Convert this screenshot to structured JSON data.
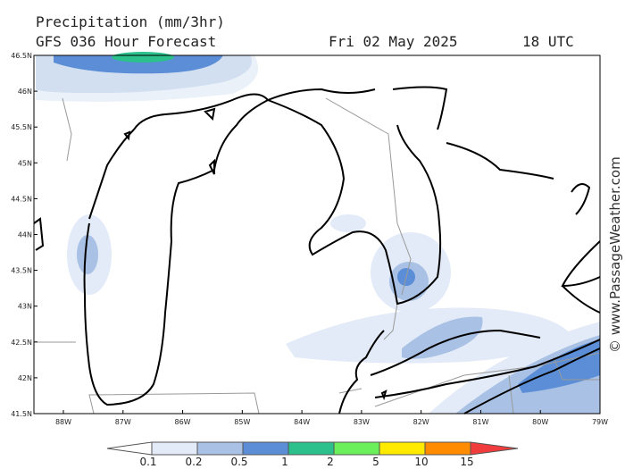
{
  "header": {
    "title": "Precipitation (mm/3hr)",
    "model": "GFS 036 Hour Forecast",
    "date": "Fri 02 May 2025",
    "time": "18 UTC"
  },
  "map": {
    "lat_labels": [
      "46.5N",
      "46N",
      "45.5N",
      "45N",
      "44.5N",
      "44N",
      "43.5N",
      "43N",
      "42.5N",
      "42N",
      "41.5N"
    ],
    "lon_labels": [
      "88W",
      "87W",
      "86W",
      "85W",
      "84W",
      "83W",
      "82W",
      "81W",
      "80W",
      "79W"
    ]
  },
  "legend": {
    "labels": [
      "0.1",
      "0.2",
      "0.5",
      "1",
      "2",
      "5",
      "10",
      "15"
    ],
    "colors": [
      "#ffffff",
      "#e2ebf7",
      "#a9c1e4",
      "#5b8ed6",
      "#2cc08c",
      "#6bf05c",
      "#ffea00",
      "#ff8c00",
      "#f03c3c"
    ]
  },
  "watermark": "© www.PassageWeather.com"
}
